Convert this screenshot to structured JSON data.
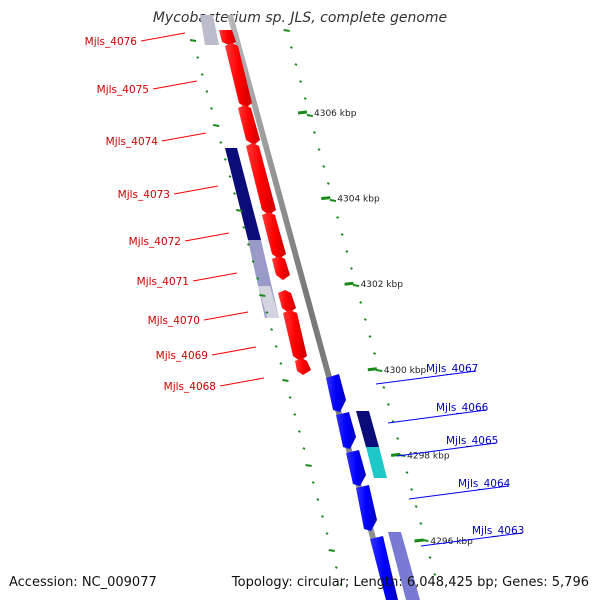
{
  "title": "Mycobacterium sp. JLS, complete genome",
  "footer": {
    "accession": "Accession: NC_009077",
    "summary": "Topology: circular; Length: 6,048,425 bp; Genes: 5,796"
  },
  "colors": {
    "reverse_gene": "#ff0000",
    "forward_gene": "#0000ff",
    "reverse_label": "#cc0000",
    "forward_label": "#0000bb",
    "tick": "#1a8a1a",
    "backbone": "#8a8a8a",
    "backbone_dark": "#444444"
  },
  "scale_ticks": [
    {
      "kbp": 4306,
      "label": "4306 kbp"
    },
    {
      "kbp": 4304,
      "label": "4304 kbp"
    },
    {
      "kbp": 4302,
      "label": "4302 kbp"
    },
    {
      "kbp": 4300,
      "label": "4300 kbp"
    },
    {
      "kbp": 4298,
      "label": "4298 kbp"
    },
    {
      "kbp": 4296,
      "label": "4296 kbp"
    }
  ],
  "reverse_genes": [
    "Mjls_4076",
    "Mjls_4075",
    "Mjls_4074",
    "Mjls_4073",
    "Mjls_4072",
    "Mjls_4071",
    "Mjls_4070",
    "Mjls_4069",
    "Mjls_4068"
  ],
  "forward_genes": [
    "Mjls_4067",
    "Mjls_4066",
    "Mjls_4065",
    "Mjls_4064",
    "Mjls_4063"
  ]
}
